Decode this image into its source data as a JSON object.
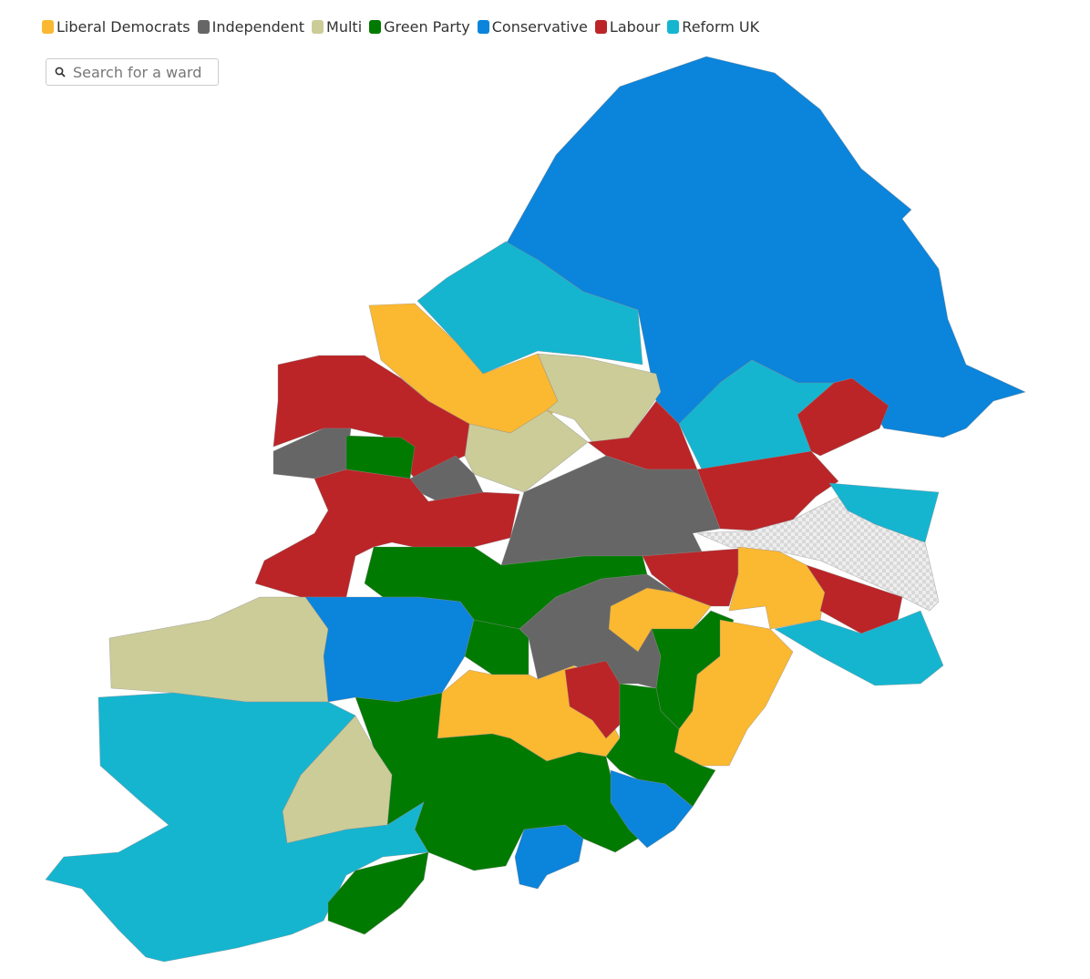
{
  "legend": [
    {
      "label": "Liberal Democrats",
      "color": "#fbb831"
    },
    {
      "label": "Independent",
      "color": "#666666"
    },
    {
      "label": "Multi",
      "color": "#cccc99"
    },
    {
      "label": "Green Party",
      "color": "#007a00"
    },
    {
      "label": "Conservative",
      "color": "#0b84db"
    },
    {
      "label": "Labour",
      "color": "#bb2528"
    },
    {
      "label": "Reform UK",
      "color": "#15b5d0"
    }
  ],
  "search": {
    "placeholder": "Search for a ward"
  }
}
